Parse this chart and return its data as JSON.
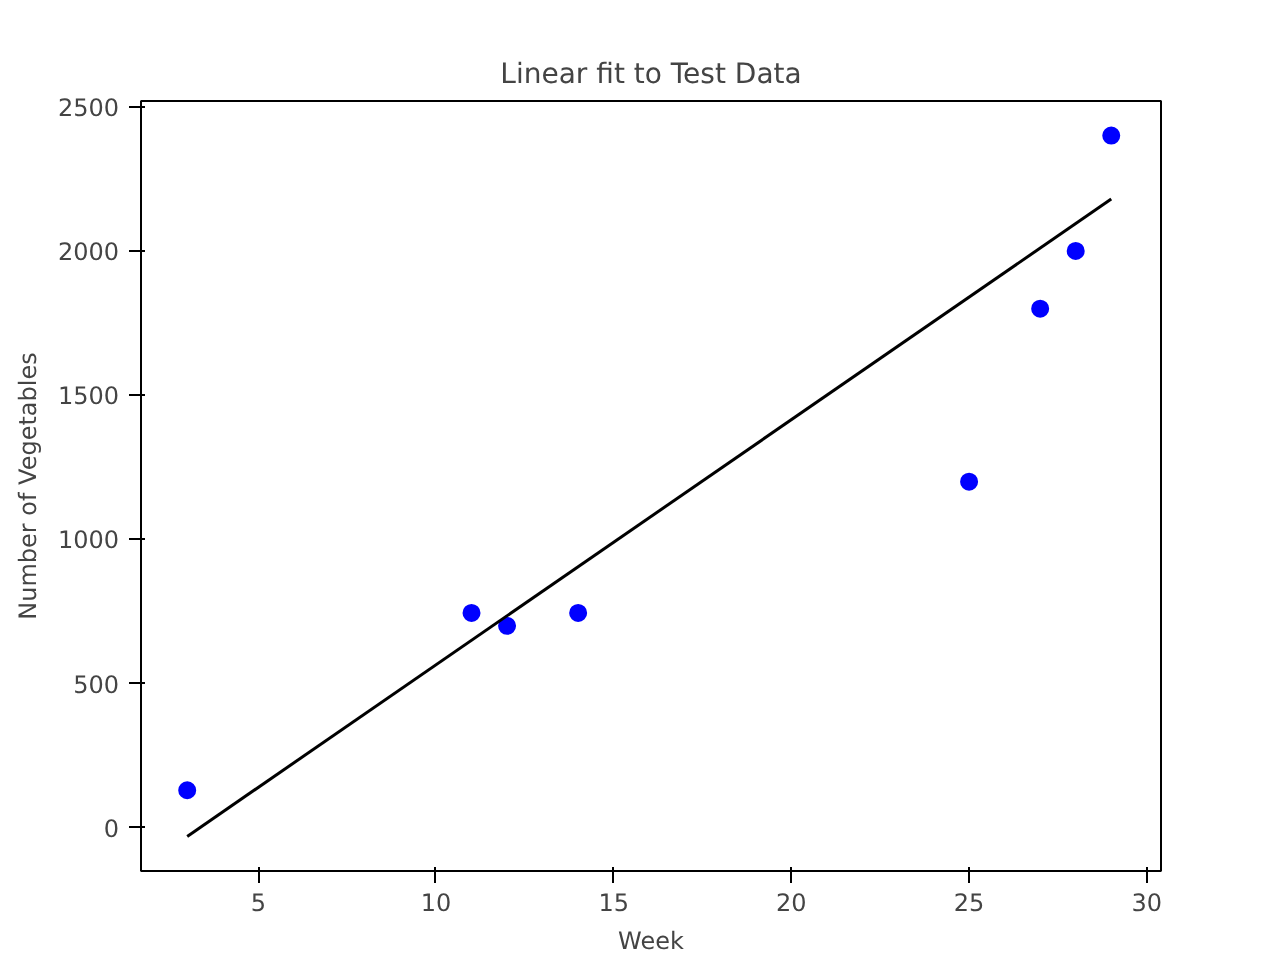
{
  "chart_data": {
    "type": "scatter",
    "title": "Linear fit to Test Data",
    "xlabel": "Week",
    "ylabel": "Number of Vegetables",
    "series": [
      {
        "color": "#0000ff",
        "x": [
          3,
          11,
          12,
          14,
          25,
          27,
          28,
          29
        ],
        "values": [
          130,
          745,
          700,
          745,
          1200,
          1800,
          2000,
          2400
        ]
      },
      {
        "type": "line",
        "marker": "none",
        "color": "#000000",
        "x": [
          3,
          29
        ],
        "values": [
          -30,
          2180
        ]
      }
    ],
    "marker": "circle",
    "xlim": [
      1.7,
      30.4
    ],
    "ylim": [
      -150,
      2520
    ],
    "xticks": [
      5,
      10,
      15,
      20,
      25,
      30
    ],
    "yticks": [
      0,
      500,
      1000,
      1500,
      2000,
      2500
    ],
    "grid": false
  }
}
